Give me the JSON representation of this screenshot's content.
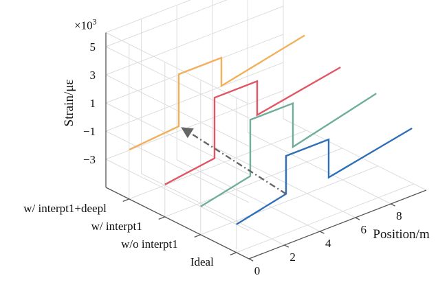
{
  "chart_data": {
    "type": "line3d",
    "title": "",
    "xlabel": "Position/m",
    "ylabel": "",
    "zlabel": "Strain/με",
    "z_exponent_label": "×10",
    "z_exponent_power": "3",
    "xlim": [
      0,
      10
    ],
    "zlim": [
      -5,
      6
    ],
    "x_ticks": [
      0,
      2,
      4,
      6,
      8
    ],
    "x_tick_labels": [
      "0",
      "2",
      "4",
      "6",
      "8"
    ],
    "z_ticks": [
      -3,
      -1,
      1,
      3,
      5
    ],
    "z_tick_labels": [
      "−3",
      "−1",
      "1",
      "3",
      "5"
    ],
    "y_tick_labels": [
      "Ideal",
      "w/o interpt1",
      "w/ interpt1",
      "w/ interpt1+deepl"
    ],
    "series": [
      {
        "name": "Ideal",
        "color": "#2e6fb8",
        "x": [
          0,
          2.8,
          2.8,
          5.2,
          5.2,
          9.9
        ],
        "z": [
          -3,
          -2.2,
          0.5,
          0.5,
          -2.2,
          -1
        ]
      },
      {
        "name": "w/o interpt1",
        "color": "#6fae98",
        "x": [
          0,
          2.8,
          2.8,
          5.2,
          5.2,
          9.9
        ],
        "z": [
          -3,
          -2.2,
          1.8,
          1.8,
          -1.3,
          0.2
        ]
      },
      {
        "name": "w/ interpt1",
        "color": "#e05663",
        "x": [
          0,
          2.8,
          2.8,
          5.2,
          5.2,
          9.9
        ],
        "z": [
          -2.7,
          -2.2,
          2.1,
          2.1,
          -0.3,
          0.8
        ]
      },
      {
        "name": "w/ interpt1+deepl",
        "color": "#f2b05c",
        "x": [
          0,
          2.8,
          2.8,
          5.2,
          5.2,
          9.9
        ],
        "z": [
          -1.5,
          -1.2,
          2.5,
          2.5,
          0.5,
          1.8
        ]
      }
    ],
    "arrow": {
      "color": "#666666",
      "from": {
        "series": 0,
        "x": 2.8,
        "z": -2.2
      },
      "to": {
        "series": 3,
        "x": 2.8,
        "z": -1.2
      }
    },
    "grid": true
  }
}
